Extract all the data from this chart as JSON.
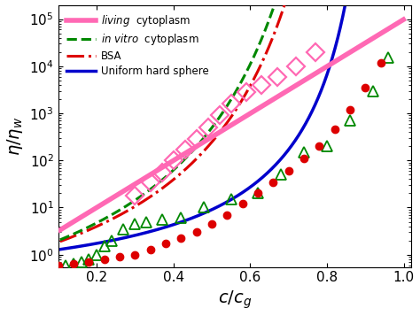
{
  "xlabel": "$c/c_g$",
  "ylabel": "$\\eta/\\eta_w$",
  "xlim": [
    0.1,
    1.02
  ],
  "ylim_log": [
    0.55,
    200000.0
  ],
  "bg_color": "#ffffff",
  "living_color": "#ff69b4",
  "vitro_color": "#008800",
  "bsa_color": "#dd0000",
  "hard_color": "#0000cc",
  "living_lw": 4.0,
  "vitro_lw": 2.2,
  "bsa_lw": 2.2,
  "hard_lw": 2.5,
  "living_diamonds_x": [
    0.3,
    0.34,
    0.37,
    0.4,
    0.43,
    0.46,
    0.49,
    0.52,
    0.55,
    0.59,
    0.63,
    0.67,
    0.72,
    0.77
  ],
  "living_diamonds_y": [
    18,
    35,
    55,
    100,
    170,
    280,
    500,
    900,
    1600,
    2800,
    4000,
    6000,
    10000,
    20000
  ],
  "vitro_triangles_x": [
    0.1,
    0.12,
    0.14,
    0.16,
    0.18,
    0.2,
    0.22,
    0.24,
    0.27,
    0.3,
    0.33,
    0.37,
    0.42,
    0.48,
    0.55,
    0.62,
    0.68,
    0.74,
    0.8,
    0.86,
    0.92,
    0.96
  ],
  "vitro_triangles_y": [
    0.55,
    0.6,
    0.65,
    0.7,
    0.8,
    1.0,
    1.5,
    2.0,
    3.5,
    4.5,
    5.0,
    5.5,
    6.0,
    10,
    15,
    20,
    50,
    150,
    200,
    700,
    3000,
    15000
  ],
  "bsa_dots_x": [
    0.1,
    0.14,
    0.18,
    0.22,
    0.26,
    0.3,
    0.34,
    0.38,
    0.42,
    0.46,
    0.5,
    0.54,
    0.58,
    0.62,
    0.66,
    0.7,
    0.74,
    0.78,
    0.82,
    0.86,
    0.9,
    0.94
  ],
  "bsa_dots_y": [
    0.6,
    0.65,
    0.7,
    0.8,
    0.9,
    1.0,
    1.3,
    1.7,
    2.2,
    3.0,
    4.5,
    7.0,
    12,
    20,
    35,
    60,
    110,
    200,
    450,
    1200,
    3500,
    12000
  ],
  "living_exp_a": 11.5,
  "vft_vitro_A": 6.2,
  "vft_bsa_A": 5.5,
  "vft_hard_A": 2.2
}
